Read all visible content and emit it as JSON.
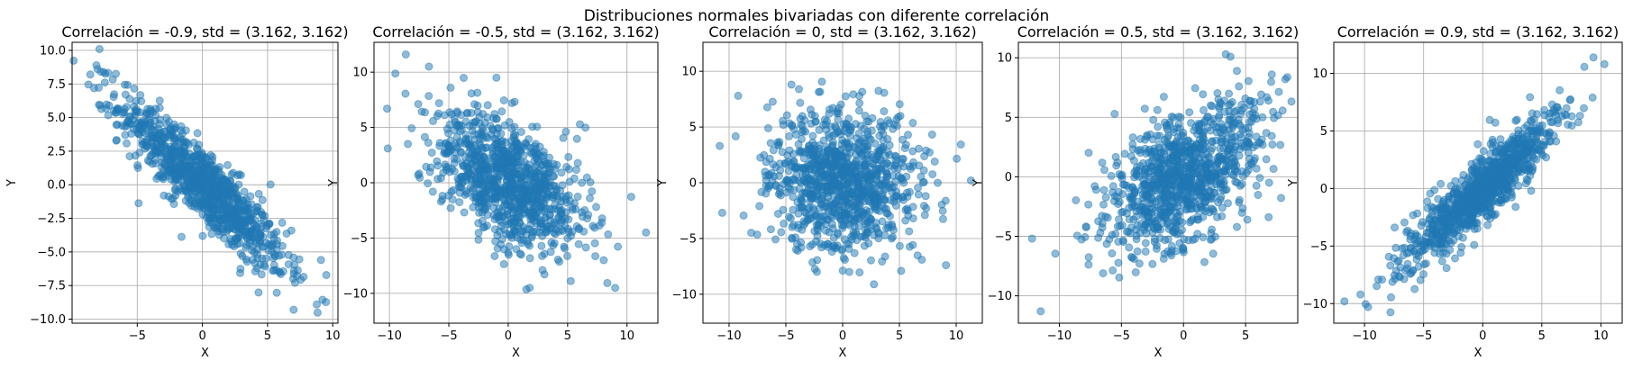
{
  "figure_title": "Distribuciones normales bivariadas con diferente correlación",
  "chart_data": [
    {
      "type": "scatter",
      "title": "Correlación = -0.9, std = (3.162, 3.162)",
      "xlabel": "X",
      "ylabel": "Y",
      "correlation": -0.9,
      "std": [
        3.162,
        3.162
      ],
      "n_points": 1000,
      "xlim": [
        -10,
        10.4
      ],
      "ylim": [
        -10.3,
        10.6
      ],
      "xticks": [
        -5,
        0,
        5,
        10
      ],
      "yticks": [
        -10.0,
        -7.5,
        -5.0,
        -2.5,
        0.0,
        2.5,
        5.0,
        7.5,
        10.0
      ],
      "ytick_labels": [
        "−10.0",
        "−7.5",
        "−5.0",
        "−2.5",
        "0.0",
        "2.5",
        "5.0",
        "7.5",
        "10.0"
      ],
      "xtick_labels": [
        "−5",
        "0",
        "5",
        "10"
      ],
      "grid": true,
      "color": "#1f77b4",
      "alpha": 0.5,
      "extremes": [
        {
          "x": -7.9,
          "y": 10.1
        },
        {
          "x": 7.0,
          "y": -9.3
        },
        {
          "x": 9.1,
          "y": -5.6
        },
        {
          "x": -8.6,
          "y": 8.2
        }
      ]
    },
    {
      "type": "scatter",
      "title": "Correlación = -0.5, std = (3.162, 3.162)",
      "xlabel": "X",
      "ylabel": "Y",
      "correlation": -0.5,
      "std": [
        3.162,
        3.162
      ],
      "n_points": 1000,
      "xlim": [
        -11.3,
        12.6
      ],
      "ylim": [
        -12.7,
        12.7
      ],
      "xticks": [
        -10,
        -5,
        0,
        5,
        10
      ],
      "yticks": [
        -10,
        -5,
        0,
        5,
        10
      ],
      "xtick_labels": [
        "−10",
        "−5",
        "0",
        "5",
        "10"
      ],
      "ytick_labels": [
        "−10",
        "−5",
        "0",
        "5",
        "10"
      ],
      "grid": true,
      "color": "#1f77b4",
      "alpha": 0.5,
      "extremes": [
        {
          "x": -10.2,
          "y": 6.7
        },
        {
          "x": 11.6,
          "y": -4.5
        },
        {
          "x": -1.0,
          "y": 9.5
        },
        {
          "x": 1.8,
          "y": -9.5
        }
      ]
    },
    {
      "type": "scatter",
      "title": "Correlación = 0, std = (3.162, 3.162)",
      "xlabel": "X",
      "ylabel": "Y",
      "correlation": 0,
      "std": [
        3.162,
        3.162
      ],
      "n_points": 1000,
      "xlim": [
        -12.3,
        12.3
      ],
      "ylim": [
        -12.6,
        12.6
      ],
      "xticks": [
        -10,
        -5,
        0,
        5,
        10
      ],
      "yticks": [
        -10,
        -5,
        0,
        5,
        10
      ],
      "xtick_labels": [
        "−10",
        "−5",
        "0",
        "5",
        "10"
      ],
      "ytick_labels": [
        "−10",
        "−5",
        "0",
        "5",
        "10"
      ],
      "grid": true,
      "color": "#1f77b4",
      "alpha": 0.5,
      "extremes": [
        {
          "x": -10.6,
          "y": -2.7
        },
        {
          "x": 11.3,
          "y": 0.2
        },
        {
          "x": -9.2,
          "y": 7.8
        },
        {
          "x": 9.1,
          "y": -7.4
        }
      ]
    },
    {
      "type": "scatter",
      "title": "Correlación = 0.5, std = (3.162, 3.162)",
      "xlabel": "X",
      "ylabel": "Y",
      "correlation": 0.5,
      "std": [
        3.162,
        3.162
      ],
      "n_points": 1000,
      "xlim": [
        -13.3,
        9.2
      ],
      "ylim": [
        -12.3,
        11.3
      ],
      "xticks": [
        -10,
        -5,
        0,
        5
      ],
      "yticks": [
        -10,
        -5,
        0,
        5,
        10
      ],
      "xtick_labels": [
        "−10",
        "−5",
        "0",
        "5"
      ],
      "ytick_labels": [
        "−10",
        "−5",
        "0",
        "5",
        "10"
      ],
      "grid": true,
      "color": "#1f77b4",
      "alpha": 0.5,
      "extremes": [
        {
          "x": -11.5,
          "y": -11.3
        },
        {
          "x": -12.2,
          "y": -5.2
        },
        {
          "x": 3.4,
          "y": 10.3
        },
        {
          "x": 8.2,
          "y": 8.2
        }
      ]
    },
    {
      "type": "scatter",
      "title": "Correlación = 0.9, std = (3.162, 3.162)",
      "xlabel": "X",
      "ylabel": "Y",
      "correlation": 0.9,
      "std": [
        3.162,
        3.162
      ],
      "n_points": 1000,
      "xlim": [
        -12.6,
        11.8
      ],
      "ylim": [
        -11.7,
        12.7
      ],
      "xticks": [
        -10,
        -5,
        0,
        5,
        10
      ],
      "yticks": [
        -10,
        -5,
        0,
        5,
        10
      ],
      "xtick_labels": [
        "−10",
        "−5",
        "0",
        "5",
        "10"
      ],
      "ytick_labels": [
        "−10",
        "−5",
        "0",
        "5",
        "10"
      ],
      "grid": true,
      "color": "#1f77b4",
      "alpha": 0.5,
      "extremes": [
        {
          "x": -11.7,
          "y": -9.8
        },
        {
          "x": -9.7,
          "y": -10.3
        },
        {
          "x": 10.3,
          "y": 10.8
        },
        {
          "x": 9.3,
          "y": 7.9
        }
      ]
    }
  ]
}
